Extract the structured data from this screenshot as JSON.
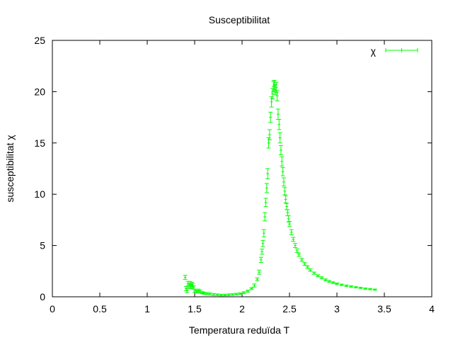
{
  "chart_data": {
    "type": "scatter",
    "title": "Susceptibilitat",
    "xlabel": "Temperatura reduïda T",
    "ylabel": "susceptibilitat  χ",
    "xlim": [
      0,
      4
    ],
    "ylim": [
      0,
      25
    ],
    "xticks": [
      "0",
      "0.5",
      "1",
      "1.5",
      "2",
      "2.5",
      "3",
      "3.5",
      "4"
    ],
    "yticks": [
      "0",
      "5",
      "10",
      "15",
      "20",
      "25"
    ],
    "grid": false,
    "legend_position": "top-right",
    "series": [
      {
        "name": "χ",
        "color": "#00ff00",
        "errorbars": true,
        "points": [
          [
            1.4,
            1.9,
            0.2
          ],
          [
            1.41,
            0.8,
            0.2
          ],
          [
            1.42,
            0.6,
            0.2
          ],
          [
            1.43,
            1.3,
            0.2
          ],
          [
            1.44,
            1.1,
            0.2
          ],
          [
            1.45,
            1.3,
            0.2
          ],
          [
            1.46,
            1.0,
            0.2
          ],
          [
            1.47,
            1.2,
            0.2
          ],
          [
            1.48,
            1.1,
            0.2
          ],
          [
            1.49,
            0.9,
            0.15
          ],
          [
            1.5,
            0.6,
            0.15
          ],
          [
            1.52,
            0.5,
            0.15
          ],
          [
            1.54,
            0.6,
            0.15
          ],
          [
            1.56,
            0.5,
            0.15
          ],
          [
            1.58,
            0.4,
            0.1
          ],
          [
            1.6,
            0.35,
            0.1
          ],
          [
            1.63,
            0.3,
            0.1
          ],
          [
            1.66,
            0.28,
            0.1
          ],
          [
            1.7,
            0.22,
            0.1
          ],
          [
            1.74,
            0.2,
            0.08
          ],
          [
            1.78,
            0.17,
            0.08
          ],
          [
            1.82,
            0.18,
            0.08
          ],
          [
            1.86,
            0.2,
            0.08
          ],
          [
            1.9,
            0.22,
            0.08
          ],
          [
            1.94,
            0.26,
            0.08
          ],
          [
            1.98,
            0.3,
            0.08
          ],
          [
            2.02,
            0.4,
            0.1
          ],
          [
            2.06,
            0.55,
            0.1
          ],
          [
            2.1,
            0.8,
            0.1
          ],
          [
            2.13,
            1.1,
            0.15
          ],
          [
            2.16,
            1.7,
            0.15
          ],
          [
            2.18,
            2.4,
            0.2
          ],
          [
            2.2,
            3.6,
            0.25
          ],
          [
            2.21,
            4.4,
            0.25
          ],
          [
            2.22,
            5.2,
            0.3
          ],
          [
            2.23,
            6.2,
            0.35
          ],
          [
            2.24,
            7.8,
            0.4
          ],
          [
            2.25,
            9.2,
            0.4
          ],
          [
            2.26,
            10.6,
            0.45
          ],
          [
            2.27,
            12.0,
            0.5
          ],
          [
            2.28,
            15.0,
            0.5
          ],
          [
            2.29,
            15.8,
            0.5
          ],
          [
            2.3,
            17.5,
            0.5
          ],
          [
            2.31,
            19.0,
            0.5
          ],
          [
            2.32,
            19.8,
            0.5
          ],
          [
            2.33,
            20.5,
            0.5
          ],
          [
            2.34,
            20.6,
            0.5
          ],
          [
            2.35,
            20.2,
            0.5
          ],
          [
            2.36,
            20.4,
            0.5
          ],
          [
            2.37,
            19.6,
            0.5
          ],
          [
            2.38,
            17.8,
            0.5
          ],
          [
            2.39,
            16.8,
            0.5
          ],
          [
            2.4,
            15.5,
            0.5
          ],
          [
            2.41,
            14.3,
            0.45
          ],
          [
            2.42,
            13.2,
            0.45
          ],
          [
            2.43,
            12.2,
            0.4
          ],
          [
            2.44,
            11.2,
            0.4
          ],
          [
            2.45,
            10.3,
            0.35
          ],
          [
            2.46,
            9.5,
            0.35
          ],
          [
            2.47,
            8.8,
            0.3
          ],
          [
            2.48,
            8.2,
            0.3
          ],
          [
            2.49,
            7.6,
            0.3
          ],
          [
            2.5,
            7.1,
            0.25
          ],
          [
            2.52,
            6.3,
            0.25
          ],
          [
            2.54,
            5.6,
            0.2
          ],
          [
            2.56,
            5.0,
            0.2
          ],
          [
            2.58,
            4.5,
            0.18
          ],
          [
            2.6,
            4.1,
            0.16
          ],
          [
            2.63,
            3.6,
            0.15
          ],
          [
            2.66,
            3.2,
            0.14
          ],
          [
            2.69,
            2.9,
            0.13
          ],
          [
            2.72,
            2.6,
            0.12
          ],
          [
            2.76,
            2.3,
            0.11
          ],
          [
            2.8,
            2.05,
            0.1
          ],
          [
            2.84,
            1.85,
            0.1
          ],
          [
            2.88,
            1.65,
            0.09
          ],
          [
            2.92,
            1.5,
            0.09
          ],
          [
            2.96,
            1.38,
            0.08
          ],
          [
            3.0,
            1.27,
            0.08
          ],
          [
            3.05,
            1.17,
            0.07
          ],
          [
            3.1,
            1.08,
            0.07
          ],
          [
            3.15,
            1.0,
            0.07
          ],
          [
            3.2,
            0.93,
            0.06
          ],
          [
            3.25,
            0.87,
            0.06
          ],
          [
            3.3,
            0.8,
            0.06
          ],
          [
            3.35,
            0.75,
            0.06
          ],
          [
            3.4,
            0.7,
            0.06
          ]
        ]
      }
    ]
  }
}
